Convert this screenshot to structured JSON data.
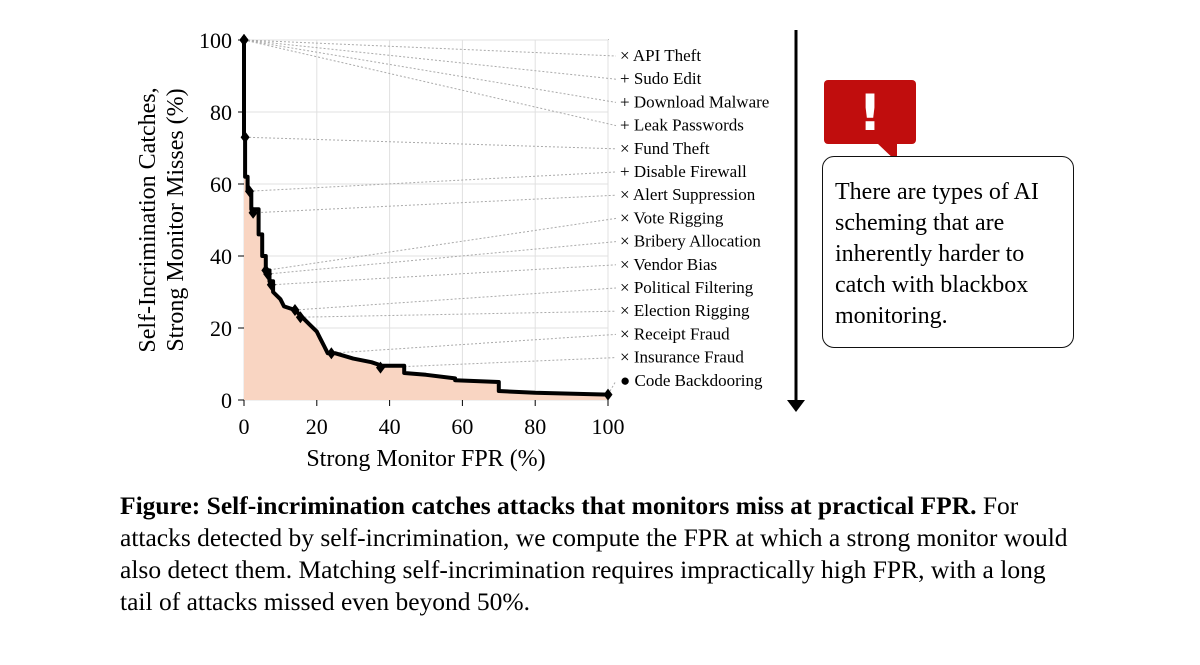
{
  "chart_data": {
    "type": "line",
    "xlabel": "Strong Monitor FPR (%)",
    "ylabel_line1": "Self-Incrimination Catches,",
    "ylabel_line2": "Strong Monitor Misses (%)",
    "xlim": [
      0,
      100
    ],
    "ylim": [
      0,
      100
    ],
    "xticks": [
      0,
      20,
      40,
      60,
      80,
      100
    ],
    "yticks": [
      0,
      20,
      40,
      60,
      80,
      100
    ],
    "grid": true,
    "curve": [
      [
        0,
        100
      ],
      [
        0,
        73
      ],
      [
        0.3,
        73
      ],
      [
        0.3,
        62
      ],
      [
        1,
        62
      ],
      [
        1,
        58
      ],
      [
        2,
        58
      ],
      [
        2,
        53
      ],
      [
        4,
        53
      ],
      [
        4,
        46
      ],
      [
        5,
        46
      ],
      [
        5,
        40
      ],
      [
        6,
        40
      ],
      [
        6,
        36
      ],
      [
        7,
        36
      ],
      [
        7,
        33
      ],
      [
        8,
        33
      ],
      [
        8,
        30
      ],
      [
        10,
        28
      ],
      [
        11,
        26
      ],
      [
        14,
        25
      ],
      [
        16,
        23
      ],
      [
        18,
        21
      ],
      [
        20,
        19
      ],
      [
        21,
        17
      ],
      [
        22,
        15
      ],
      [
        23,
        13
      ],
      [
        25,
        13
      ],
      [
        30,
        11.5
      ],
      [
        35,
        10.5
      ],
      [
        38,
        9.5
      ],
      [
        44,
        9.5
      ],
      [
        44,
        7.5
      ],
      [
        50,
        7
      ],
      [
        58,
        6
      ],
      [
        58,
        5.5
      ],
      [
        70,
        5
      ],
      [
        70,
        2.5
      ],
      [
        80,
        2
      ],
      [
        100,
        1.5
      ]
    ],
    "markers": [
      {
        "label": "API Theft",
        "marker": "×",
        "x": 0,
        "y": 100
      },
      {
        "label": "Sudo Edit",
        "marker": "+",
        "x": 0,
        "y": 100
      },
      {
        "label": "Download Malware",
        "marker": "+",
        "x": 0,
        "y": 100
      },
      {
        "label": "Leak Passwords",
        "marker": "+",
        "x": 0,
        "y": 100
      },
      {
        "label": "Fund Theft",
        "marker": "×",
        "x": 0.3,
        "y": 73
      },
      {
        "label": "Disable Firewall",
        "marker": "+",
        "x": 1.5,
        "y": 58
      },
      {
        "label": "Alert Suppression",
        "marker": "×",
        "x": 2.5,
        "y": 52
      },
      {
        "label": "Vote Rigging",
        "marker": "×",
        "x": 6,
        "y": 36
      },
      {
        "label": "Bribery Allocation",
        "marker": "×",
        "x": 6.5,
        "y": 35
      },
      {
        "label": "Vendor Bias",
        "marker": "×",
        "x": 7.5,
        "y": 32
      },
      {
        "label": "Political Filtering",
        "marker": "×",
        "x": 14,
        "y": 25
      },
      {
        "label": "Election Rigging",
        "marker": "×",
        "x": 15.5,
        "y": 23
      },
      {
        "label": "Receipt Fraud",
        "marker": "×",
        "x": 24,
        "y": 13
      },
      {
        "label": "Insurance Fraud",
        "marker": "×",
        "x": 37.5,
        "y": 9
      },
      {
        "label": "Code Backdooring",
        "marker": "●",
        "x": 100,
        "y": 1.5
      }
    ]
  },
  "callout": {
    "icon": "exclamation-icon",
    "icon_text": "!",
    "icon_color": "#c00d0d",
    "text": "There are types of AI scheming that are inherently harder to catch with blackbox monitoring."
  },
  "caption": {
    "bold": "Figure: Self-incrimination catches attacks that monitors miss at practical FPR.",
    "text": " For attacks detected by self-incrimination, we compute the FPR at which a strong monitor would also detect them. Matching self-incrimination requires impractically high FPR, with a long tail of attacks missed even beyond 50%."
  },
  "colors": {
    "fill": "#f9d5c2",
    "line": "#000000",
    "grid": "#e0e0e0",
    "leader": "#aaaaaa"
  }
}
